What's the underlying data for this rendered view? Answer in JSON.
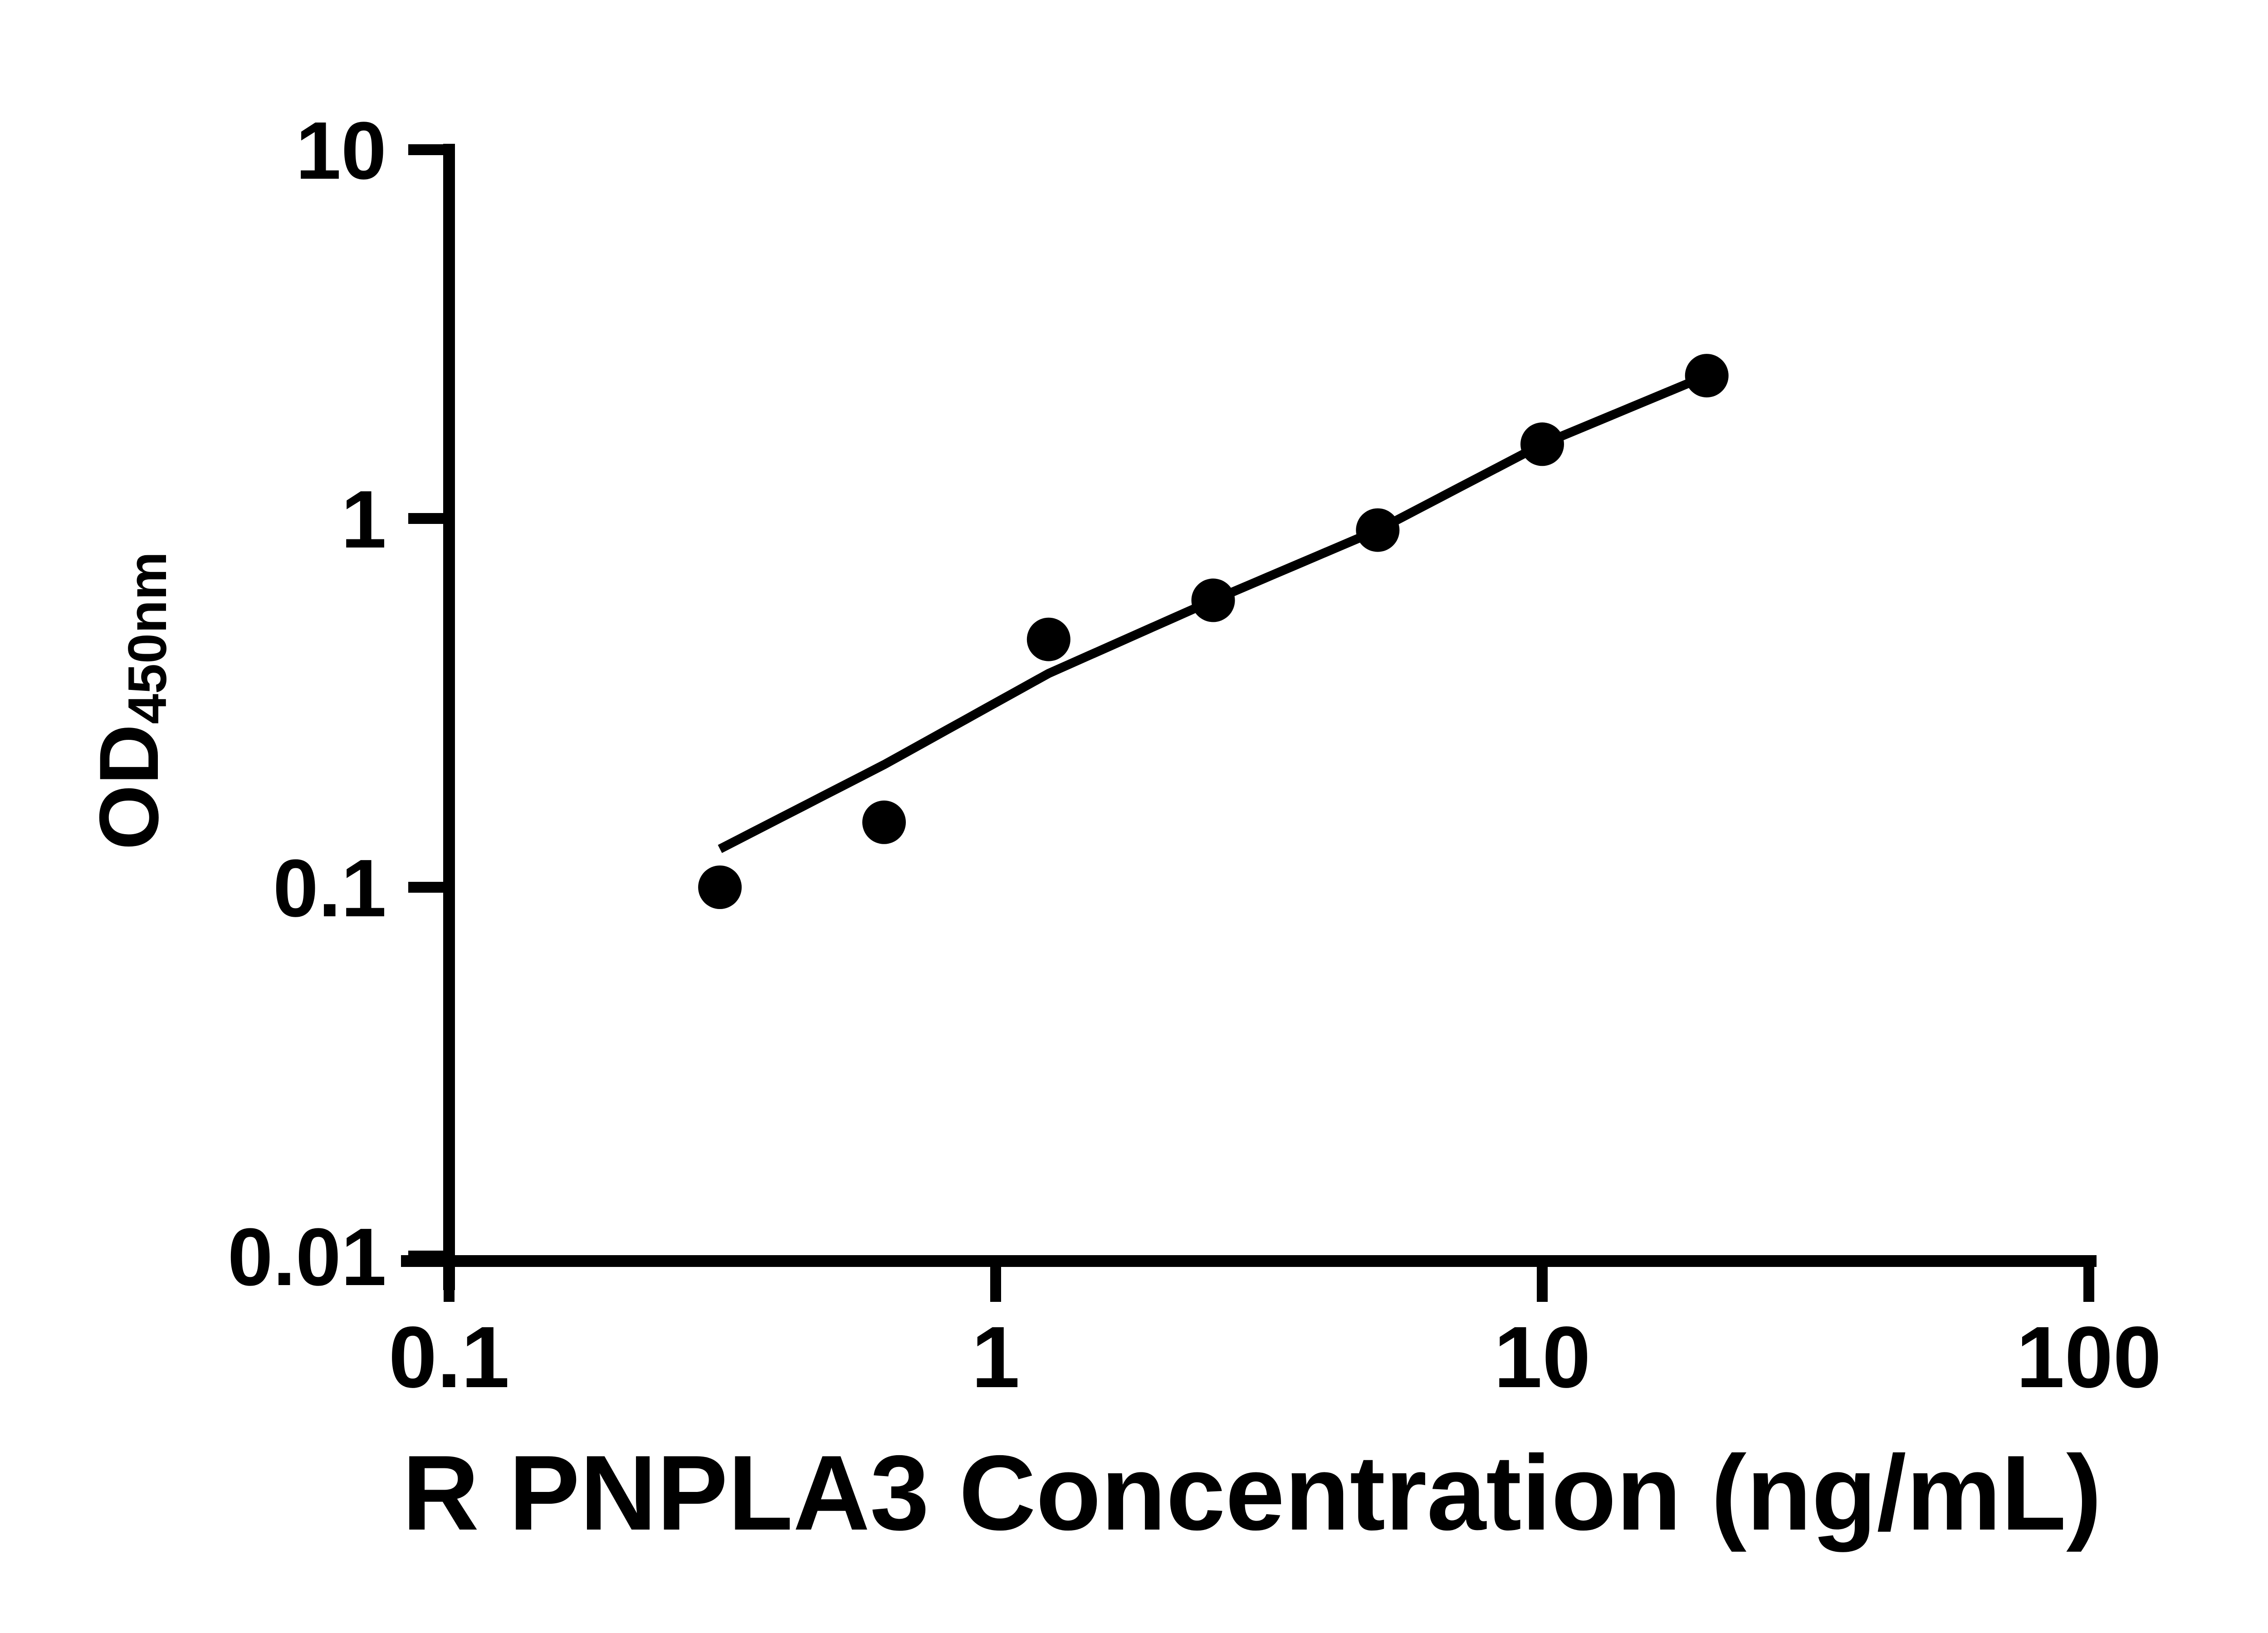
{
  "page": {
    "background_color": "#ffffff",
    "foreground_color": "#000000"
  },
  "chart_data": {
    "type": "scatter",
    "title": "",
    "xlabel": "R PNPLA3 Concentration (ng/mL)",
    "ylabel_main": "OD",
    "ylabel_sub": "450nm",
    "x_scale": "log",
    "y_scale": "log",
    "xlim": [
      0.1,
      100
    ],
    "ylim": [
      0.01,
      10
    ],
    "x_ticks": [
      0.1,
      1,
      10,
      100
    ],
    "x_tick_labels": [
      "0.1",
      "1",
      "10",
      "100"
    ],
    "y_ticks": [
      10,
      1,
      0.1,
      0.01
    ],
    "y_tick_labels": [
      "10",
      "1",
      "0.1",
      "0.01"
    ],
    "grid": false,
    "legend": null,
    "marker": "filled-circle",
    "marker_color": "#000000",
    "line_color": "#000000",
    "series": [
      {
        "points": [
          {
            "x": 0.313,
            "y": 0.1
          },
          {
            "x": 0.625,
            "y": 0.15
          },
          {
            "x": 1.25,
            "y": 0.47
          },
          {
            "x": 2.5,
            "y": 0.6
          },
          {
            "x": 5,
            "y": 0.93
          },
          {
            "x": 10,
            "y": 1.59
          },
          {
            "x": 20,
            "y": 2.44
          }
        ]
      }
    ],
    "trend_line": {
      "anchors": [
        [
          0.313,
          0.127
        ],
        [
          0.625,
          0.215
        ],
        [
          1.25,
          0.38
        ],
        [
          2.5,
          0.6
        ],
        [
          5,
          0.93
        ],
        [
          10,
          1.59
        ],
        [
          20,
          2.44
        ]
      ]
    }
  }
}
